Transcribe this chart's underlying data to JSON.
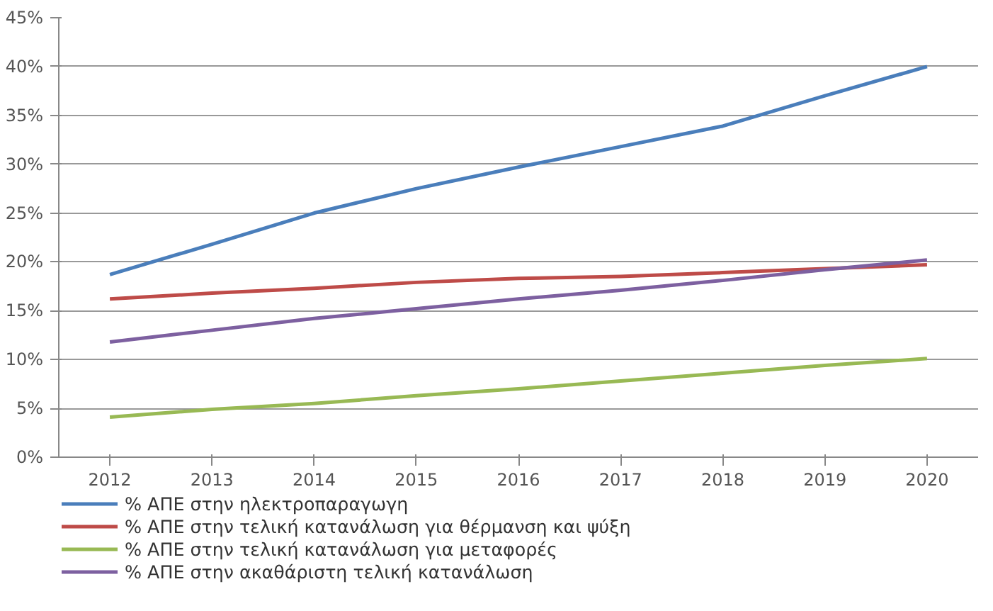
{
  "chart_data": {
    "type": "line",
    "categories": [
      "2012",
      "2013",
      "2014",
      "2015",
      "2016",
      "2017",
      "2018",
      "2019",
      "2020"
    ],
    "ylim": [
      0,
      45
    ],
    "yticks": [
      {
        "value": 0,
        "label": "0%"
      },
      {
        "value": 5,
        "label": "5%"
      },
      {
        "value": 10,
        "label": "10%"
      },
      {
        "value": 15,
        "label": "15%"
      },
      {
        "value": 20,
        "label": "20%"
      },
      {
        "value": 25,
        "label": "25%"
      },
      {
        "value": 30,
        "label": "30%"
      },
      {
        "value": 35,
        "label": "35%"
      },
      {
        "value": 40,
        "label": "40%"
      },
      {
        "value": 45,
        "label": "45%"
      }
    ],
    "grid": "y",
    "legend": "bottom",
    "marker": "none",
    "line_style": "solid",
    "series": [
      {
        "name": "% ΑΠΕ στην ηλεκτροπαραγωγη",
        "color": "#4a7ebb",
        "values": [
          18.7,
          21.8,
          25,
          27.5,
          29.7,
          31.8,
          33.9,
          37,
          40
        ]
      },
      {
        "name": "% ΑΠΕ στην τελική κατανάλωση για θέρμανση και ψύξη",
        "color": "#be4b48",
        "values": [
          16.2,
          16.8,
          17.3,
          17.9,
          18.3,
          18.5,
          18.9,
          19.3,
          19.7
        ]
      },
      {
        "name": "% ΑΠΕ στην τελική κατανάλωση για μεταφορές",
        "color": "#98b954",
        "values": [
          4.1,
          4.9,
          5.5,
          6.3,
          7.0,
          7.8,
          8.6,
          9.4,
          10.1
        ]
      },
      {
        "name": "% ΑΠΕ στην ακαθάριστη τελική κατανάλωση",
        "color": "#7d60a0",
        "values": [
          11.8,
          13.0,
          14.2,
          15.2,
          16.2,
          17.1,
          18.1,
          19.2,
          20.2
        ]
      }
    ]
  }
}
